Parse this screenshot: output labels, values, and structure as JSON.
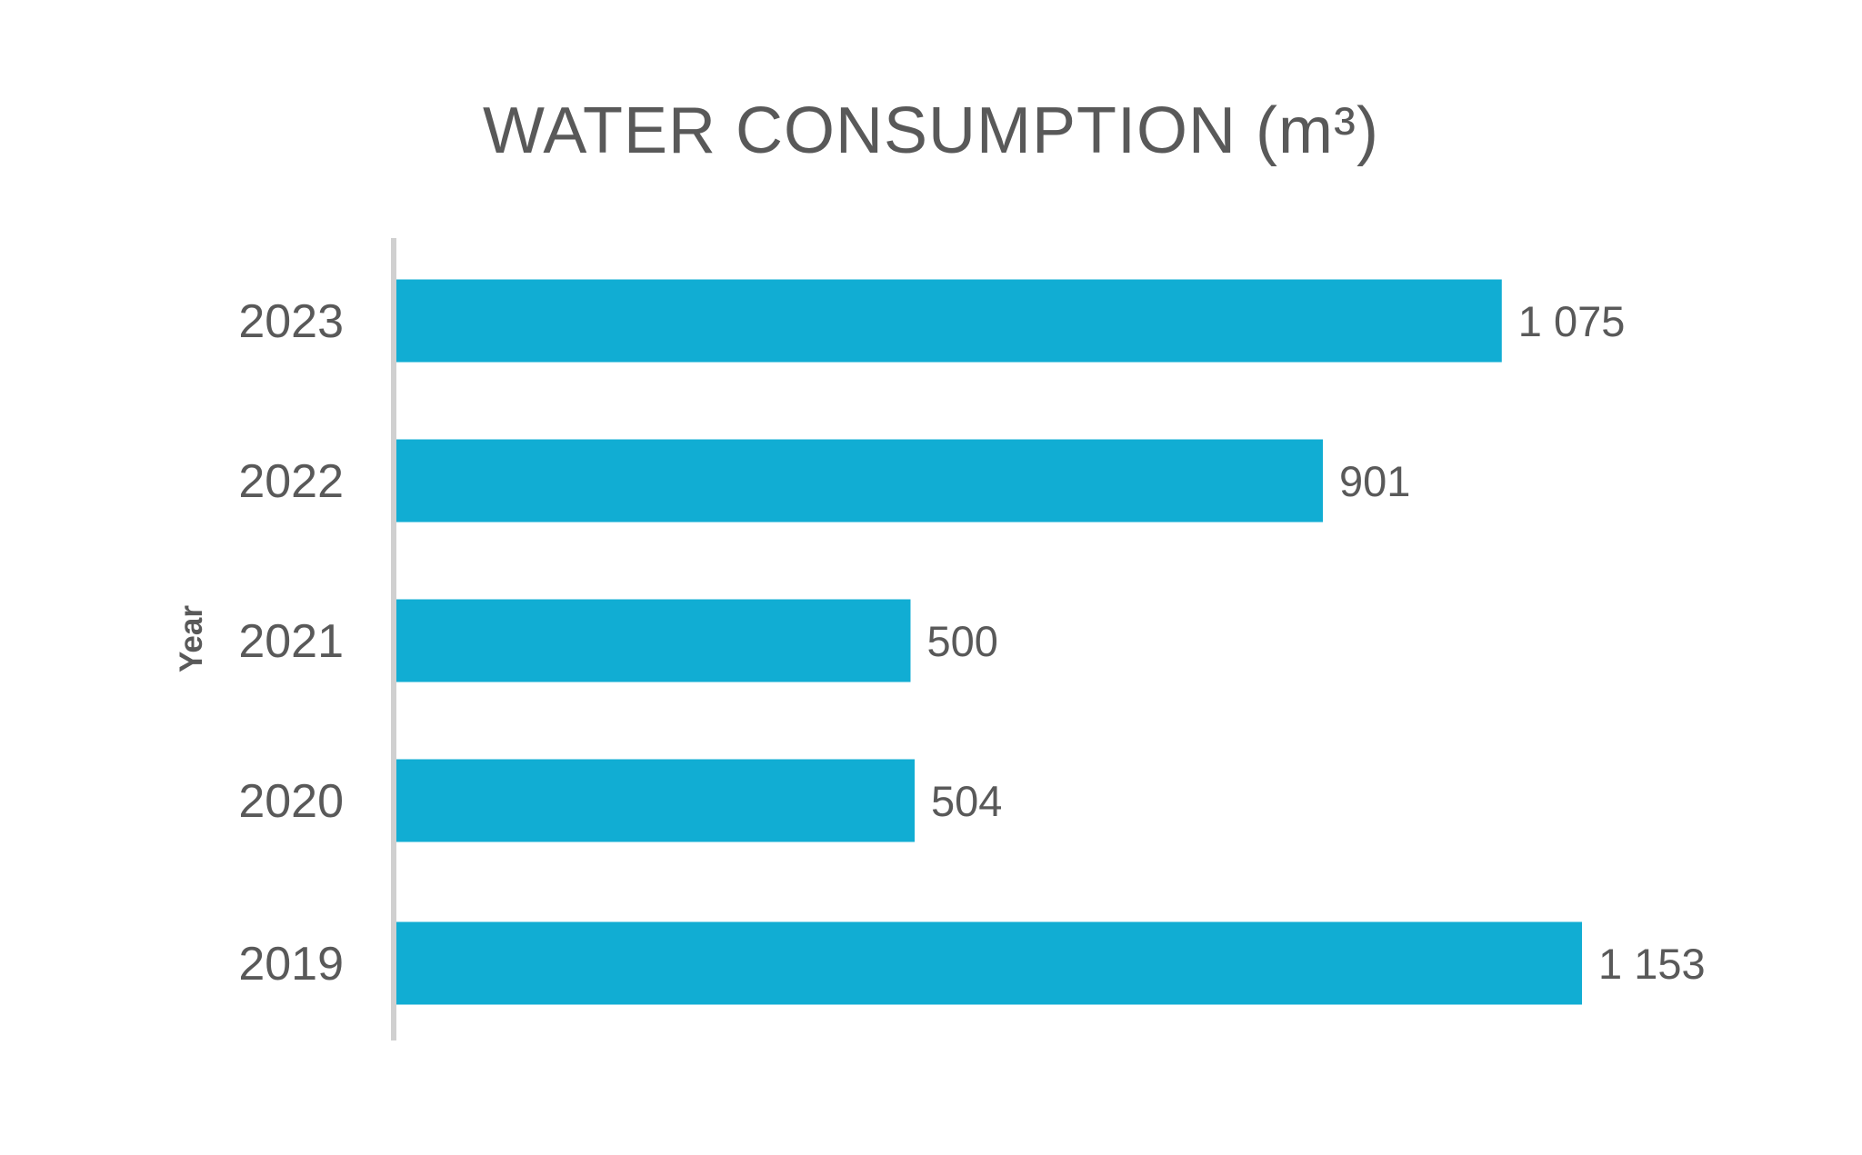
{
  "chart_data": {
    "type": "bar",
    "orientation": "horizontal",
    "title": "WATER CONSUMPTION (m³)",
    "ylabel": "Year",
    "xlabel": "",
    "categories": [
      "2023",
      "2022",
      "2021",
      "2020",
      "2019"
    ],
    "values": [
      1075,
      901,
      500,
      504,
      1153
    ],
    "value_labels": [
      "1 075",
      "901",
      "500",
      "504",
      "1 153"
    ],
    "xlim": [
      0,
      1153
    ],
    "grid": false,
    "legend": "none",
    "colors": {
      "bar": "#11add3",
      "axis": "#d0d0d0",
      "text": "#595959"
    }
  }
}
